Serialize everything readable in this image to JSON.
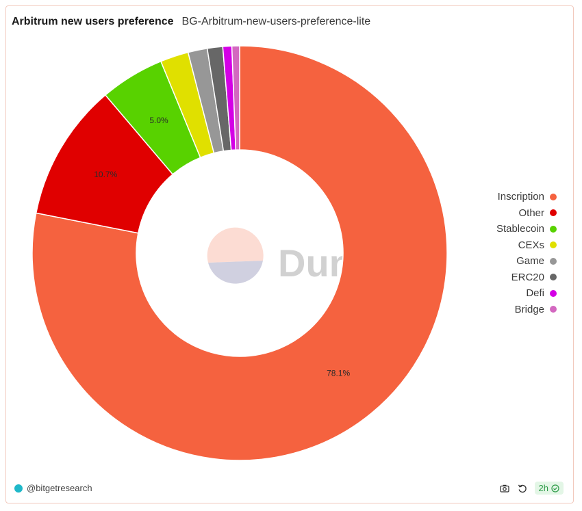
{
  "header": {
    "title": "Arbitrum new users preference",
    "subtitle": "BG-Arbitrum-new-users-preference-lite"
  },
  "watermark": {
    "text": "Dune"
  },
  "footer": {
    "author": "@bitgetresearch",
    "refresh_badge": "2h"
  },
  "chart_data": {
    "type": "pie",
    "donut": true,
    "title": "Arbitrum new users preference",
    "categories": [
      "Inscription",
      "Other",
      "Stablecoin",
      "CEXs",
      "Game",
      "ERC20",
      "Defi",
      "Bridge"
    ],
    "values": [
      78.1,
      10.7,
      5.0,
      2.2,
      1.5,
      1.2,
      0.7,
      0.6
    ],
    "data_labels": [
      "78.1%",
      "10.7%",
      "5.0%",
      "",
      "",
      "",
      "",
      ""
    ],
    "colors": [
      "#f5623f",
      "#e00000",
      "#58d200",
      "#e0e000",
      "#979797",
      "#676767",
      "#d400e6",
      "#d368c0"
    ],
    "legend_placement": "right"
  }
}
